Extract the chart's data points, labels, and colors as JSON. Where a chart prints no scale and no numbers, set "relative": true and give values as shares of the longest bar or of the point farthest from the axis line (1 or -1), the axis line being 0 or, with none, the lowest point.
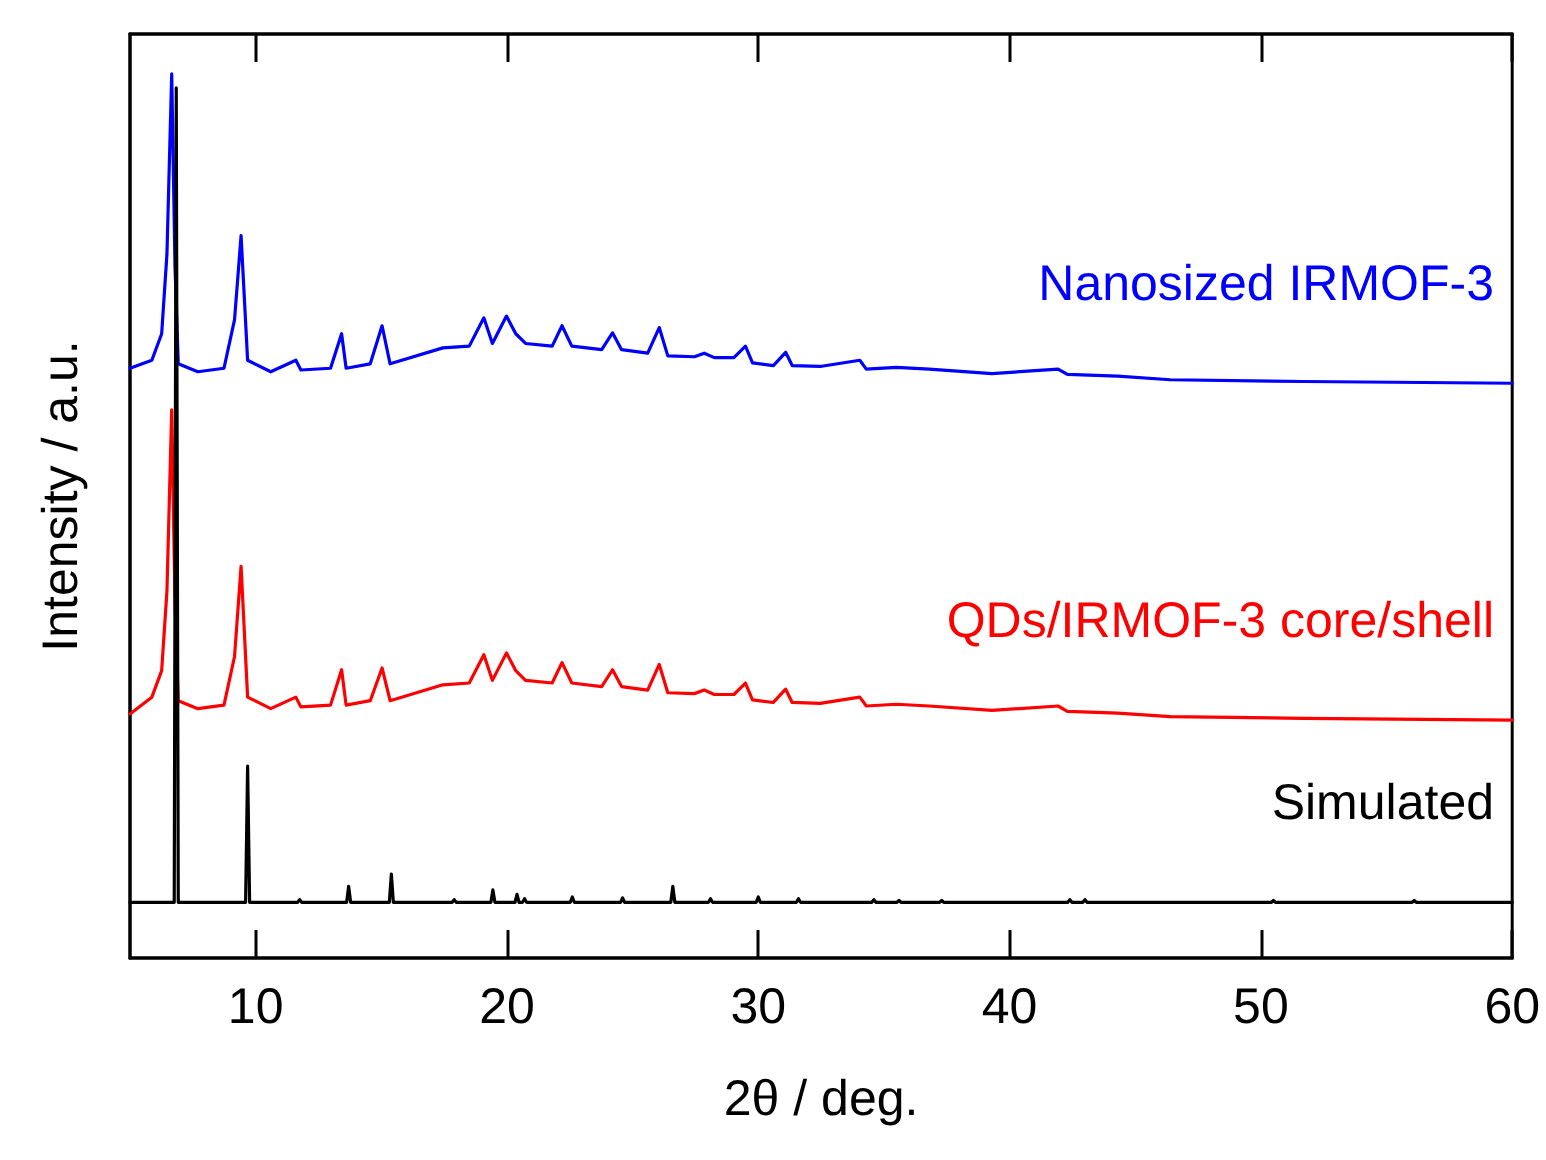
{
  "chart_data": {
    "type": "line",
    "xlabel": "2θ / deg.",
    "ylabel": "Intensity / a.u.",
    "relative": true,
    "xlim": [
      5,
      60
    ],
    "xticks": [
      10,
      20,
      30,
      40,
      50,
      60
    ],
    "tick_labels": "x",
    "grid": false,
    "legend": false,
    "marker": "none",
    "x": [
      5,
      5.87,
      6.26,
      6.47,
      6.66,
      6.79,
      6.92,
      7.7,
      8.74,
      9.16,
      9.42,
      9.68,
      10.6,
      11.6,
      11.8,
      12.98,
      13.42,
      13.6,
      14.56,
      15.03,
      15.35,
      17.45,
      18.5,
      19.08,
      19.42,
      19.98,
      20.35,
      20.74,
      21.8,
      22.19,
      22.58,
      23.77,
      24.2,
      24.56,
      25.6,
      26.06,
      26.4,
      27.46,
      27.85,
      28.25,
      29.03,
      29.49,
      29.77,
      30.6,
      31.09,
      31.35,
      32.46,
      34.04,
      34.3,
      35.49,
      36.8,
      39.3,
      41.93,
      42.3,
      44.3,
      46.4,
      51.7,
      60
    ],
    "series": [
      {
        "name": "Nanosized IRMOF-3",
        "color": "#0000ff",
        "values": [
          0.667,
          0.676,
          0.706,
          0.796,
          1,
          0.783,
          0.672,
          0.663,
          0.667,
          0.722,
          0.817,
          0.676,
          0.663,
          0.676,
          0.665,
          0.667,
          0.706,
          0.667,
          0.672,
          0.715,
          0.672,
          0.69,
          0.692,
          0.724,
          0.695,
          0.726,
          0.706,
          0.695,
          0.692,
          0.715,
          0.692,
          0.688,
          0.707,
          0.688,
          0.684,
          0.713,
          0.681,
          0.68,
          0.684,
          0.679,
          0.679,
          0.692,
          0.673,
          0.67,
          0.685,
          0.67,
          0.669,
          0.676,
          0.666,
          0.668,
          0.666,
          0.661,
          0.666,
          0.66,
          0.658,
          0.654,
          0.652,
          0.65
        ]
      },
      {
        "name": "QDs/IRMOF-3 core/shell",
        "color": "#ff0000",
        "values": [
          0.276,
          0.295,
          0.325,
          0.415,
          0.62,
          0.402,
          0.291,
          0.282,
          0.286,
          0.341,
          0.443,
          0.295,
          0.282,
          0.295,
          0.284,
          0.286,
          0.326,
          0.286,
          0.291,
          0.328,
          0.291,
          0.309,
          0.311,
          0.343,
          0.314,
          0.345,
          0.325,
          0.314,
          0.311,
          0.334,
          0.311,
          0.307,
          0.326,
          0.307,
          0.303,
          0.332,
          0.3,
          0.299,
          0.303,
          0.298,
          0.298,
          0.311,
          0.292,
          0.289,
          0.304,
          0.289,
          0.288,
          0.295,
          0.285,
          0.287,
          0.285,
          0.28,
          0.285,
          0.279,
          0.277,
          0.273,
          0.271,
          0.269
        ]
      },
      {
        "name": "Simulated",
        "color": "#000000",
        "x": [
          5,
          6.76,
          6.84,
          6.92,
          9.6,
          9.68,
          9.76,
          11.67,
          11.75,
          11.83,
          13.62,
          13.7,
          13.78,
          15.32,
          15.4,
          15.48,
          17.82,
          17.9,
          17.98,
          19.36,
          19.44,
          19.52,
          20.32,
          20.4,
          20.48,
          20.62,
          20.7,
          20.78,
          22.52,
          22.6,
          22.68,
          24.52,
          24.6,
          24.68,
          26.52,
          26.6,
          26.68,
          28.02,
          28.1,
          28.18,
          29.92,
          30,
          30.08,
          31.52,
          31.6,
          31.68,
          34.52,
          34.6,
          34.68,
          35.52,
          35.6,
          35.68,
          37.22,
          37.3,
          37.38,
          42.32,
          42.4,
          42.48,
          42.92,
          43,
          43.08,
          50.42,
          50.5,
          50.58,
          56.02,
          56.1,
          56.18,
          60
        ],
        "values": [
          0.063,
          0.063,
          0.984,
          0.063,
          0.063,
          0.217,
          0.063,
          0.063,
          0.066,
          0.063,
          0.063,
          0.081,
          0.063,
          0.063,
          0.095,
          0.063,
          0.063,
          0.066,
          0.063,
          0.063,
          0.077,
          0.063,
          0.063,
          0.072,
          0.063,
          0.063,
          0.067,
          0.063,
          0.063,
          0.069,
          0.063,
          0.063,
          0.068,
          0.063,
          0.063,
          0.081,
          0.063,
          0.063,
          0.067,
          0.063,
          0.063,
          0.069,
          0.063,
          0.063,
          0.067,
          0.063,
          0.063,
          0.066,
          0.063,
          0.063,
          0.065,
          0.063,
          0.063,
          0.065,
          0.063,
          0.063,
          0.066,
          0.063,
          0.063,
          0.066,
          0.063,
          0.063,
          0.065,
          0.063,
          0.063,
          0.065,
          0.063,
          0.063
        ]
      }
    ]
  }
}
